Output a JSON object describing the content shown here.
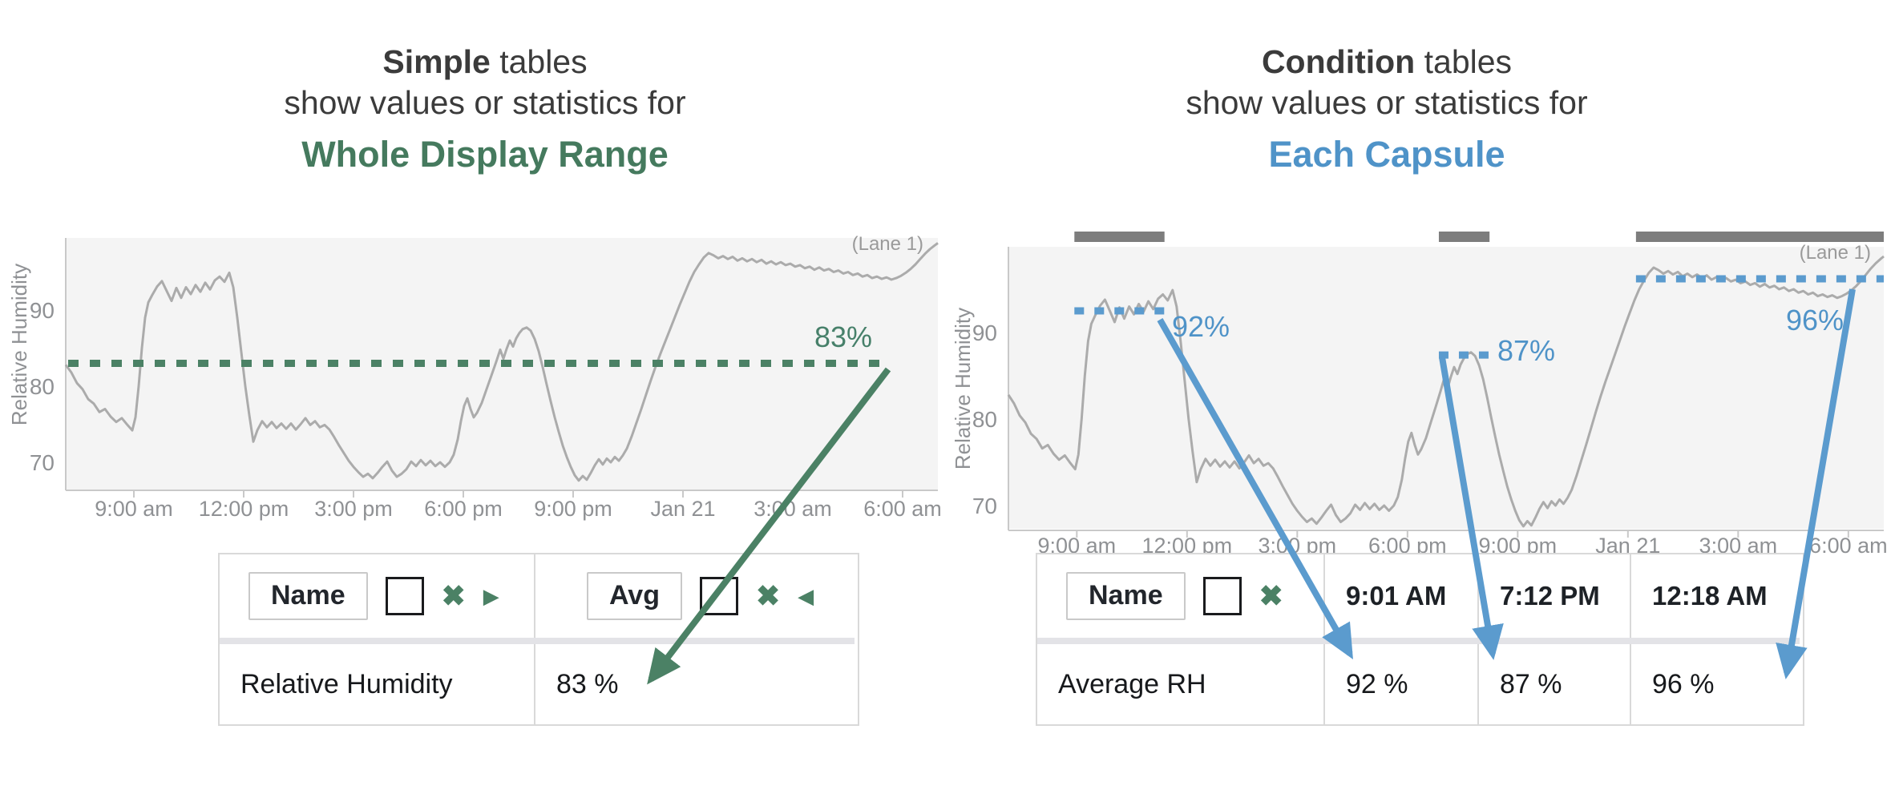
{
  "colors": {
    "green": "#4b8165",
    "green_heading": "#457a5e",
    "green_label": "#47806a",
    "blue": "#5b9bce",
    "blue_heading": "#4f93c8",
    "gray_line": "#ababab",
    "chart_bg": "#f4f4f4",
    "axis": "#c9c9c9",
    "tick_text": "#8f9194",
    "lane_text": "#9a9a9a",
    "capsule_bar": "#7d7d7d",
    "title_text": "#3b3b3b",
    "table_border": "#d9d9d9",
    "table_divider": "#e3e3e7",
    "table_text": "#17191c"
  },
  "icons": {
    "remove": "✖",
    "tree_expand_right": "▶",
    "tree_expand_left": "◀"
  },
  "left_panel": {
    "title_line1_bold": "Simple",
    "title_line1_rest": " tables",
    "title_line2": "show values or statistics for",
    "title_line3": "Whole Display Range",
    "lane_label": "(Lane 1)",
    "avg_label": "83%",
    "table": {
      "name_header": "Name",
      "stat_header": "Avg",
      "row_name": "Relative Humidity",
      "row_value": "83 %"
    }
  },
  "right_panel": {
    "title_line1_bold": "Condition",
    "title_line1_rest": " tables",
    "title_line2": "show values or statistics for",
    "title_line3": "Each Capsule",
    "lane_label": "(Lane 1)",
    "table": {
      "name_header": "Name",
      "time_headers": [
        "9:01 AM",
        "7:12 PM",
        "12:18 AM"
      ],
      "row_name": "Average RH",
      "row_values": [
        "92 %",
        "87 %",
        "96 %"
      ]
    }
  },
  "chart_data": {
    "type": "line",
    "series_name": "Relative Humidity",
    "ylabel": "Relative Humidity",
    "y_ticks": [
      90,
      80,
      70
    ],
    "x_tick_labels": [
      "9:00 am",
      "12:00 pm",
      "3:00 pm",
      "6:00 pm",
      "9:00 pm",
      "Jan 21",
      "3:00 am",
      "6:00 am"
    ],
    "x_tick_offsets": [
      85,
      222,
      359,
      496,
      633,
      770,
      907,
      1044
    ],
    "signal_points": [
      [
        0,
        82.8
      ],
      [
        7,
        81.8
      ],
      [
        14,
        80.4
      ],
      [
        21,
        79.6
      ],
      [
        28,
        78.3
      ],
      [
        35,
        77.7
      ],
      [
        42,
        76.6
      ],
      [
        49,
        77.0
      ],
      [
        56,
        76.0
      ],
      [
        63,
        75.3
      ],
      [
        70,
        75.8
      ],
      [
        77,
        74.9
      ],
      [
        83,
        74.2
      ],
      [
        87,
        75.9
      ],
      [
        91,
        80.0
      ],
      [
        95,
        85.0
      ],
      [
        99,
        89.0
      ],
      [
        103,
        91.0
      ],
      [
        108,
        92.0
      ],
      [
        114,
        93.1
      ],
      [
        120,
        93.8
      ],
      [
        126,
        92.5
      ],
      [
        132,
        91.2
      ],
      [
        138,
        92.9
      ],
      [
        144,
        91.6
      ],
      [
        150,
        93.0
      ],
      [
        156,
        92.1
      ],
      [
        162,
        93.3
      ],
      [
        168,
        92.4
      ],
      [
        174,
        93.6
      ],
      [
        180,
        92.7
      ],
      [
        186,
        93.9
      ],
      [
        192,
        94.4
      ],
      [
        198,
        93.7
      ],
      [
        204,
        94.9
      ],
      [
        209,
        93.0
      ],
      [
        214,
        89.0
      ],
      [
        219,
        84.5
      ],
      [
        224,
        80.0
      ],
      [
        229,
        76.2
      ],
      [
        234,
        72.7
      ],
      [
        239,
        74.2
      ],
      [
        245,
        75.4
      ],
      [
        251,
        74.6
      ],
      [
        257,
        75.3
      ],
      [
        263,
        74.5
      ],
      [
        269,
        75.1
      ],
      [
        275,
        74.4
      ],
      [
        281,
        75.1
      ],
      [
        287,
        74.3
      ],
      [
        293,
        75.0
      ],
      [
        299,
        75.8
      ],
      [
        305,
        74.9
      ],
      [
        311,
        75.4
      ],
      [
        317,
        74.6
      ],
      [
        323,
        74.9
      ],
      [
        329,
        74.3
      ],
      [
        335,
        73.3
      ],
      [
        341,
        72.2
      ],
      [
        347,
        71.2
      ],
      [
        353,
        70.2
      ],
      [
        359,
        69.4
      ],
      [
        365,
        68.7
      ],
      [
        371,
        68.1
      ],
      [
        377,
        68.5
      ],
      [
        383,
        67.9
      ],
      [
        389,
        68.6
      ],
      [
        395,
        69.4
      ],
      [
        401,
        70.1
      ],
      [
        407,
        68.9
      ],
      [
        413,
        68.1
      ],
      [
        419,
        68.5
      ],
      [
        425,
        69.1
      ],
      [
        431,
        70.1
      ],
      [
        437,
        69.5
      ],
      [
        443,
        70.3
      ],
      [
        449,
        69.6
      ],
      [
        455,
        70.2
      ],
      [
        461,
        69.5
      ],
      [
        467,
        70.0
      ],
      [
        473,
        69.4
      ],
      [
        479,
        70.0
      ],
      [
        484,
        71.0
      ],
      [
        489,
        73.0
      ],
      [
        493,
        75.4
      ],
      [
        497,
        77.4
      ],
      [
        501,
        78.4
      ],
      [
        505,
        77.0
      ],
      [
        509,
        75.9
      ],
      [
        513,
        76.5
      ],
      [
        519,
        77.8
      ],
      [
        525,
        79.6
      ],
      [
        531,
        81.4
      ],
      [
        537,
        83.2
      ],
      [
        542,
        84.8
      ],
      [
        546,
        83.6
      ],
      [
        550,
        84.9
      ],
      [
        554,
        86.0
      ],
      [
        558,
        85.2
      ],
      [
        562,
        86.3
      ],
      [
        566,
        87.0
      ],
      [
        570,
        87.5
      ],
      [
        575,
        87.7
      ],
      [
        580,
        87.3
      ],
      [
        585,
        86.2
      ],
      [
        590,
        84.6
      ],
      [
        595,
        82.5
      ],
      [
        600,
        80.2
      ],
      [
        605,
        78.0
      ],
      [
        610,
        75.9
      ],
      [
        615,
        74.0
      ],
      [
        620,
        72.2
      ],
      [
        625,
        70.7
      ],
      [
        630,
        69.4
      ],
      [
        635,
        68.3
      ],
      [
        640,
        67.6
      ],
      [
        645,
        68.2
      ],
      [
        650,
        67.7
      ],
      [
        655,
        68.6
      ],
      [
        660,
        69.6
      ],
      [
        665,
        70.4
      ],
      [
        670,
        69.7
      ],
      [
        675,
        70.5
      ],
      [
        680,
        70.0
      ],
      [
        685,
        70.7
      ],
      [
        690,
        70.2
      ],
      [
        695,
        70.9
      ],
      [
        700,
        71.8
      ],
      [
        706,
        73.4
      ],
      [
        712,
        75.2
      ],
      [
        718,
        77.0
      ],
      [
        724,
        78.9
      ],
      [
        730,
        80.8
      ],
      [
        736,
        82.6
      ],
      [
        742,
        84.3
      ],
      [
        748,
        85.9
      ],
      [
        754,
        87.5
      ],
      [
        760,
        89.1
      ],
      [
        766,
        90.7
      ],
      [
        772,
        92.2
      ],
      [
        778,
        93.7
      ],
      [
        784,
        95.0
      ],
      [
        790,
        96.0
      ],
      [
        796,
        96.9
      ],
      [
        802,
        97.5
      ],
      [
        808,
        97.2
      ],
      [
        814,
        96.8
      ],
      [
        820,
        97.1
      ],
      [
        826,
        96.7
      ],
      [
        832,
        97.0
      ],
      [
        838,
        96.5
      ],
      [
        844,
        96.8
      ],
      [
        850,
        96.4
      ],
      [
        856,
        96.7
      ],
      [
        862,
        96.3
      ],
      [
        868,
        96.6
      ],
      [
        874,
        96.1
      ],
      [
        880,
        96.4
      ],
      [
        886,
        96.0
      ],
      [
        892,
        96.3
      ],
      [
        898,
        95.9
      ],
      [
        904,
        96.1
      ],
      [
        910,
        95.7
      ],
      [
        916,
        95.9
      ],
      [
        922,
        95.5
      ],
      [
        928,
        95.7
      ],
      [
        934,
        95.3
      ],
      [
        940,
        95.6
      ],
      [
        946,
        95.2
      ],
      [
        952,
        95.4
      ],
      [
        958,
        95.0
      ],
      [
        964,
        95.2
      ],
      [
        970,
        94.8
      ],
      [
        976,
        95.0
      ],
      [
        982,
        94.6
      ],
      [
        988,
        94.8
      ],
      [
        994,
        94.4
      ],
      [
        1000,
        94.6
      ],
      [
        1006,
        94.2
      ],
      [
        1012,
        94.4
      ],
      [
        1018,
        94.1
      ],
      [
        1024,
        94.3
      ],
      [
        1030,
        94.0
      ],
      [
        1036,
        94.2
      ],
      [
        1042,
        94.5
      ],
      [
        1048,
        94.9
      ],
      [
        1054,
        95.4
      ],
      [
        1060,
        96.0
      ],
      [
        1066,
        96.7
      ],
      [
        1072,
        97.4
      ],
      [
        1078,
        98.0
      ],
      [
        1084,
        98.5
      ],
      [
        1088,
        98.8
      ]
    ],
    "charts": [
      {
        "name": "simple-table-trend",
        "lane": "(Lane 1)",
        "avg_line": {
          "value": 83,
          "label": "83%",
          "o_start": 3,
          "o_end": 1024
        }
      },
      {
        "name": "condition-table-trend",
        "lane": "(Lane 1)",
        "capsules": [
          {
            "label": "92%",
            "value": 92.5,
            "o_start": 82,
            "o_end": 194
          },
          {
            "label": "87%",
            "value": 87.4,
            "o_start": 535,
            "o_end": 598
          },
          {
            "label": "96%",
            "value": 96.2,
            "o_start": 780,
            "o_end": 1088
          }
        ]
      }
    ]
  },
  "annotations": {
    "arrows": [
      {
        "name": "simple-avg-arrow",
        "color": "green",
        "from": [
          1108,
          461
        ],
        "to": [
          812,
          848
        ]
      },
      {
        "name": "capsule-1-value-arrow",
        "color": "blue",
        "from": [
          1447,
          399
        ],
        "to": [
          1684,
          816
        ]
      },
      {
        "name": "capsule-2-value-arrow",
        "color": "blue",
        "from": [
          1799,
          446
        ],
        "to": [
          1862,
          816
        ]
      },
      {
        "name": "capsule-3-value-arrow",
        "color": "blue",
        "from": [
          2311,
          361
        ],
        "to": [
          2229,
          840
        ]
      }
    ]
  }
}
